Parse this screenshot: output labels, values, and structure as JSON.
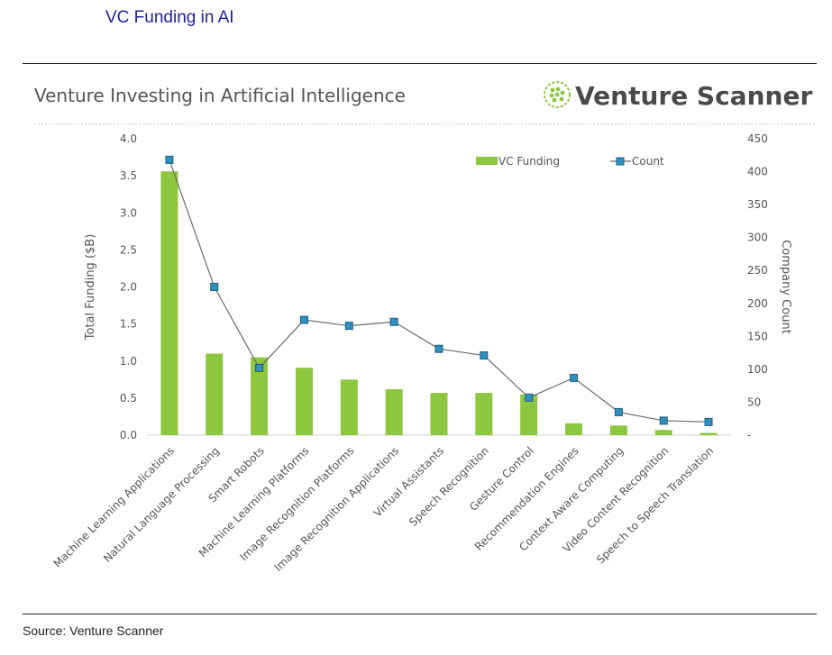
{
  "header": {
    "title": "VC Funding in AI"
  },
  "footer": {
    "source": "Source: Venture Scanner"
  },
  "brand": {
    "name": "Venture Scanner",
    "logo_icon": "green-dotted-globe-icon",
    "logo_color": "#8cc63f"
  },
  "colors": {
    "bar": "#8dc63f",
    "line": "#6b6b6b",
    "marker": "#2f8fbf",
    "marker_edge": "#1f5f80",
    "title": "#1f1f9e"
  },
  "chart_data": {
    "type": "bar",
    "title": "Venture Investing in Artificial Intelligence",
    "xlabel": "",
    "ylabel": "Total Funding ($B)",
    "y2label": "Company Count",
    "ylim": [
      0,
      4.0
    ],
    "y2lim": [
      0,
      450
    ],
    "yticks": [
      "0.0",
      "0.5",
      "1.0",
      "1.5",
      "2.0",
      "2.5",
      "3.0",
      "3.5",
      "4.0"
    ],
    "y2ticks": [
      "-",
      "50",
      "100",
      "150",
      "200",
      "250",
      "300",
      "350",
      "400",
      "450"
    ],
    "legend_position": "top-right",
    "grid": false,
    "categories": [
      "Machine Learning Applications",
      "Natural Language Processing",
      "Smart Robots",
      "Machine Learning Platforms",
      "Image Recognition Platforms",
      "Image Recognition Applications",
      "Virtual Assistants",
      "Speech Recognition",
      "Gesture Control",
      "Recommendation Engines",
      "Context Aware Computing",
      "Video Content Recognition",
      "Speech to Speech Translation"
    ],
    "series": [
      {
        "name": "VC Funding",
        "type": "bar",
        "axis": "left",
        "values": [
          3.56,
          1.1,
          1.05,
          0.91,
          0.75,
          0.62,
          0.57,
          0.57,
          0.55,
          0.16,
          0.13,
          0.07,
          0.03
        ]
      },
      {
        "name": "Count",
        "type": "line",
        "axis": "right",
        "values": [
          418,
          225,
          102,
          175,
          166,
          172,
          131,
          121,
          57,
          87,
          35,
          22,
          20
        ]
      }
    ]
  }
}
